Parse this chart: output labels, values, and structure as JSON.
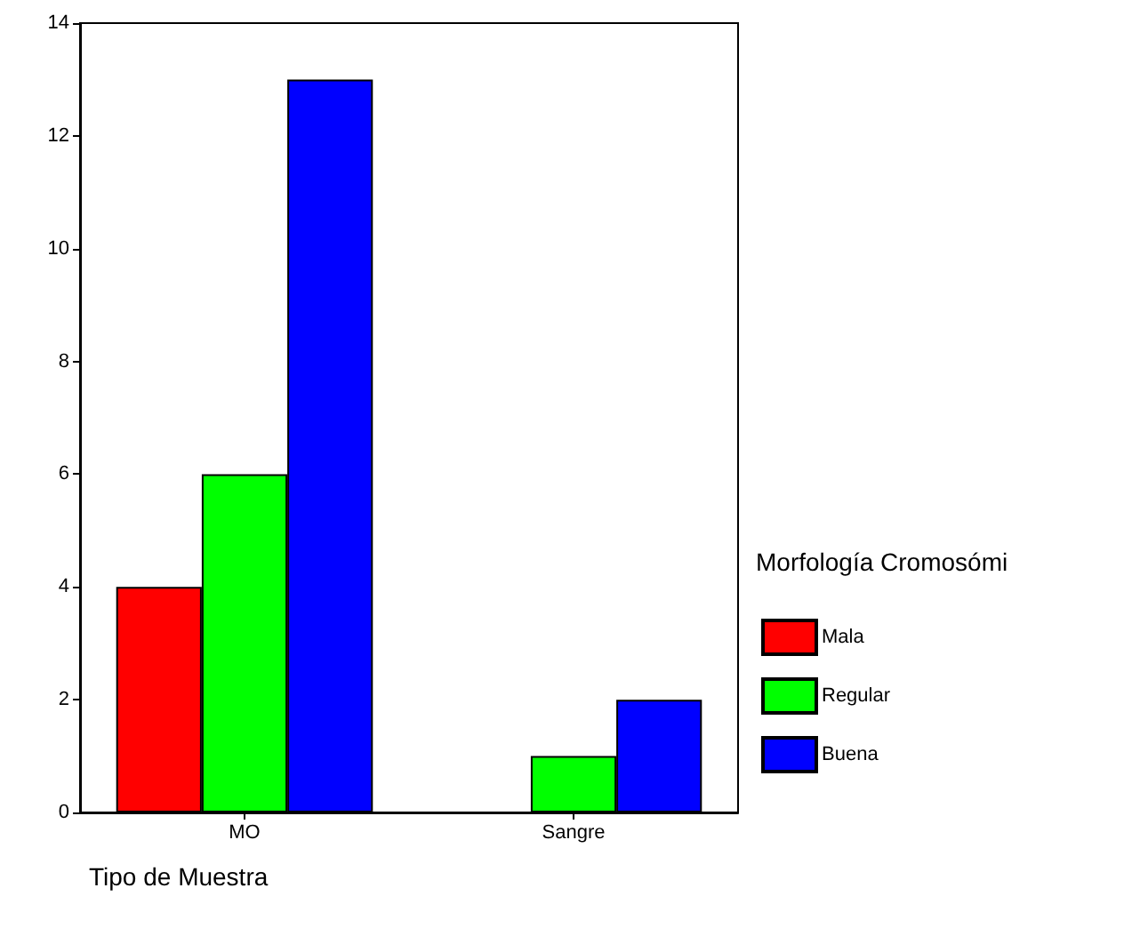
{
  "chart_data": {
    "type": "bar",
    "xlabel": "Tipo de Muestra",
    "legend_title": "Morfología Cromosómi",
    "categories": [
      "MO",
      "Sangre"
    ],
    "series": [
      {
        "name": "Mala",
        "color": "#ff0000",
        "values": [
          4,
          null
        ]
      },
      {
        "name": "Regular",
        "color": "#00ff00",
        "values": [
          6,
          1
        ]
      },
      {
        "name": "Buena",
        "color": "#0000ff",
        "values": [
          13,
          2
        ]
      }
    ],
    "ylim": [
      0,
      14
    ],
    "yticks": [
      0,
      2,
      4,
      6,
      8,
      10,
      12,
      14
    ],
    "grid": false,
    "legend": "right"
  }
}
